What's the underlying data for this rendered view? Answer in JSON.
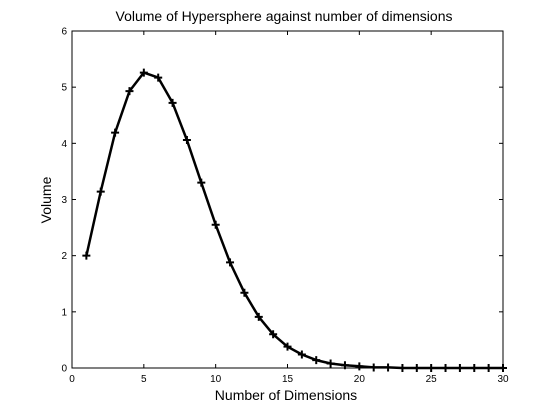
{
  "chart_data": {
    "type": "line",
    "title": "Volume of Hypersphere against number of dimensions",
    "xlabel": "Number of Dimensions",
    "ylabel": "Volume",
    "xlim": [
      0,
      30
    ],
    "ylim": [
      0,
      6
    ],
    "xticks": [
      0,
      5,
      10,
      15,
      20,
      25,
      30
    ],
    "yticks": [
      0,
      1,
      2,
      3,
      4,
      5,
      6
    ],
    "grid": false,
    "legend": "none",
    "marker": "plus",
    "line_color": "#000000",
    "series": [
      {
        "x": [
          1,
          2,
          3,
          4,
          5,
          6,
          7,
          8,
          9,
          10,
          11,
          12,
          13,
          14,
          15,
          16,
          17,
          18,
          19,
          20,
          21,
          22,
          23,
          24,
          25,
          26,
          27,
          28,
          29,
          30
        ],
        "values": [
          2.0,
          3.14,
          4.19,
          4.93,
          5.26,
          5.17,
          4.72,
          4.06,
          3.3,
          2.55,
          1.88,
          1.34,
          0.91,
          0.6,
          0.38,
          0.24,
          0.14,
          0.08,
          0.05,
          0.03,
          0.01,
          0.01,
          0.0,
          0.0,
          0.0,
          0.0,
          0.0,
          0.0,
          0.0,
          0.0
        ]
      }
    ]
  }
}
